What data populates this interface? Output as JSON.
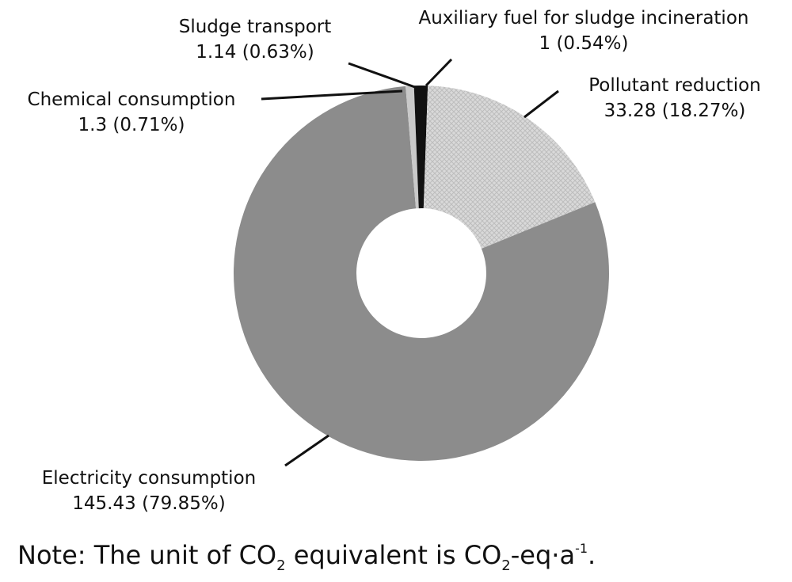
{
  "chart_data": {
    "type": "donut",
    "categories": [
      "Auxiliary fuel for sludge incineration",
      "Pollutant reduction",
      "Electricity consumption",
      "Chemical consumption",
      "Sludge transport"
    ],
    "values": [
      1,
      33.28,
      145.43,
      1.3,
      1.14
    ],
    "value_labels": [
      "1 (0.54%)",
      "33.28 (18.27%)",
      "145.43 (79.85%)",
      "1.3 (0.71%)",
      "1.14 (0.63%)"
    ],
    "colors": [
      "#111111",
      "#d9d9d9",
      "#8c8c8c",
      "#c9c9c9",
      "#111111"
    ],
    "note": [
      "Note: The unit of CO",
      "2",
      " equivalent is CO",
      "2",
      "-eq·a",
      "-1",
      "."
    ]
  }
}
